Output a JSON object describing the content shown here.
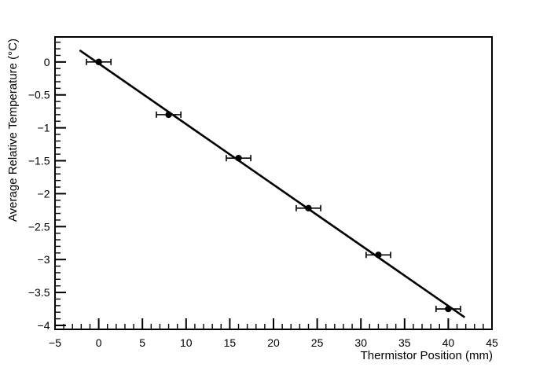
{
  "window": {
    "background_color": "#ffffff",
    "foreground_color": "#000000"
  },
  "chart_data": {
    "type": "scatter",
    "title": "",
    "xlabel": "Thermistor Position (mm)",
    "ylabel": "Average Relative Temperature (°C)",
    "xlim": [
      -5,
      45
    ],
    "ylim": [
      -4.06,
      0.38
    ],
    "grid": false,
    "legend": null,
    "x_major_ticks": [
      {
        "v": -5,
        "label": "−5"
      },
      {
        "v": 0,
        "label": "0"
      },
      {
        "v": 5,
        "label": "5"
      },
      {
        "v": 10,
        "label": "10"
      },
      {
        "v": 15,
        "label": "15"
      },
      {
        "v": 20,
        "label": "20"
      },
      {
        "v": 25,
        "label": "25"
      },
      {
        "v": 30,
        "label": "30"
      },
      {
        "v": 35,
        "label": "35"
      },
      {
        "v": 40,
        "label": "40"
      },
      {
        "v": 45,
        "label": "45"
      }
    ],
    "y_major_ticks": [
      {
        "v": 0,
        "label": "0"
      },
      {
        "v": -0.5,
        "label": "−0.5"
      },
      {
        "v": -1,
        "label": "−1"
      },
      {
        "v": -1.5,
        "label": "−1.5"
      },
      {
        "v": -2,
        "label": "−2"
      },
      {
        "v": -2.5,
        "label": "−2.5"
      },
      {
        "v": -3,
        "label": "−3"
      },
      {
        "v": -3.5,
        "label": "−3.5"
      },
      {
        "v": -4,
        "label": "−4"
      }
    ],
    "x_minor_step": 1,
    "y_minor_step": 0.1,
    "series": [
      {
        "name": "measured-points",
        "type": "scatter",
        "marker": "filled-circle",
        "color": "#000000",
        "points": [
          {
            "x": 0,
            "y": 0.0,
            "xerr": 1.4
          },
          {
            "x": 8,
            "y": -0.8,
            "xerr": 1.4
          },
          {
            "x": 16,
            "y": -1.46,
            "xerr": 1.4
          },
          {
            "x": 24,
            "y": -2.22,
            "xerr": 1.4
          },
          {
            "x": 32,
            "y": -2.93,
            "xerr": 1.4
          },
          {
            "x": 40,
            "y": -3.75,
            "xerr": 1.4
          }
        ]
      },
      {
        "name": "linear-fit",
        "type": "line",
        "color": "#000000",
        "points": [
          {
            "x": -2.1,
            "y": 0.17
          },
          {
            "x": 41.8,
            "y": -3.87
          }
        ]
      }
    ]
  }
}
